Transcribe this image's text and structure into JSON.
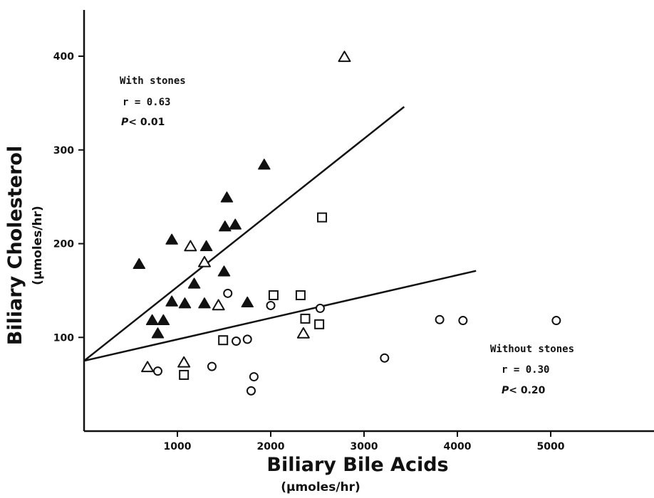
{
  "chart_data": {
    "type": "scatter",
    "xlabel": "Biliary Bile Acids",
    "xunit": "(µmoles/hr)",
    "ylabel": "Biliary Cholesterol",
    "yunit": "(µmoles/hr)",
    "xlim": [
      0,
      6100
    ],
    "ylim": [
      0,
      450
    ],
    "x_ticks": [
      {
        "value": 1000,
        "label": "1000"
      },
      {
        "value": 2000,
        "label": "2000"
      },
      {
        "value": 3000,
        "label": "3000"
      },
      {
        "value": 4000,
        "label": "4000"
      },
      {
        "value": 5000,
        "label": "5000"
      }
    ],
    "y_ticks": [
      {
        "value": 100,
        "label": "100"
      },
      {
        "value": 200,
        "label": "200"
      },
      {
        "value": 300,
        "label": "300"
      },
      {
        "value": 400,
        "label": "400"
      }
    ],
    "grid": false,
    "series": [
      {
        "marker": "filled-triangle",
        "points": [
          [
            590,
            178
          ],
          [
            730,
            118
          ],
          [
            850,
            118
          ],
          [
            790,
            104
          ],
          [
            940,
            138
          ],
          [
            940,
            204
          ],
          [
            1080,
            136
          ],
          [
            1180,
            157
          ],
          [
            1290,
            136
          ],
          [
            1310,
            197
          ],
          [
            1500,
            170
          ],
          [
            1510,
            218
          ],
          [
            1530,
            249
          ],
          [
            1620,
            220
          ],
          [
            1750,
            137
          ],
          [
            1930,
            284
          ]
        ]
      },
      {
        "marker": "open-triangle",
        "points": [
          [
            680,
            68
          ],
          [
            1070,
            73
          ],
          [
            1140,
            197
          ],
          [
            1290,
            180
          ],
          [
            1440,
            134
          ],
          [
            2350,
            104
          ],
          [
            2790,
            399
          ]
        ]
      },
      {
        "marker": "open-square",
        "points": [
          [
            1070,
            60
          ],
          [
            1490,
            97
          ],
          [
            2030,
            145
          ],
          [
            2320,
            145
          ],
          [
            2370,
            120
          ],
          [
            2520,
            114
          ],
          [
            2550,
            228
          ]
        ]
      },
      {
        "marker": "open-circle",
        "points": [
          [
            790,
            64
          ],
          [
            1370,
            69
          ],
          [
            1540,
            147
          ],
          [
            1630,
            96
          ],
          [
            1750,
            98
          ],
          [
            1790,
            43
          ],
          [
            1820,
            58
          ],
          [
            2000,
            134
          ],
          [
            2530,
            131
          ],
          [
            3220,
            78
          ],
          [
            3810,
            119
          ],
          [
            4060,
            118
          ],
          [
            5060,
            118
          ]
        ]
      }
    ],
    "lines": [
      {
        "name": "with-stones",
        "from": [
          0,
          75
        ],
        "to": [
          3430,
          346
        ]
      },
      {
        "name": "without-stones",
        "from": [
          0,
          75
        ],
        "to": [
          4200,
          171
        ]
      }
    ],
    "annotations": {
      "with_stones": {
        "title": "With stones",
        "r": "r = 0.63",
        "p_symbol": "P",
        "p_rest": "< 0.01"
      },
      "without_stones": {
        "title": "Without stones",
        "r": "r = 0.30",
        "p_symbol": "P",
        "p_rest": "< 0.20"
      }
    }
  }
}
